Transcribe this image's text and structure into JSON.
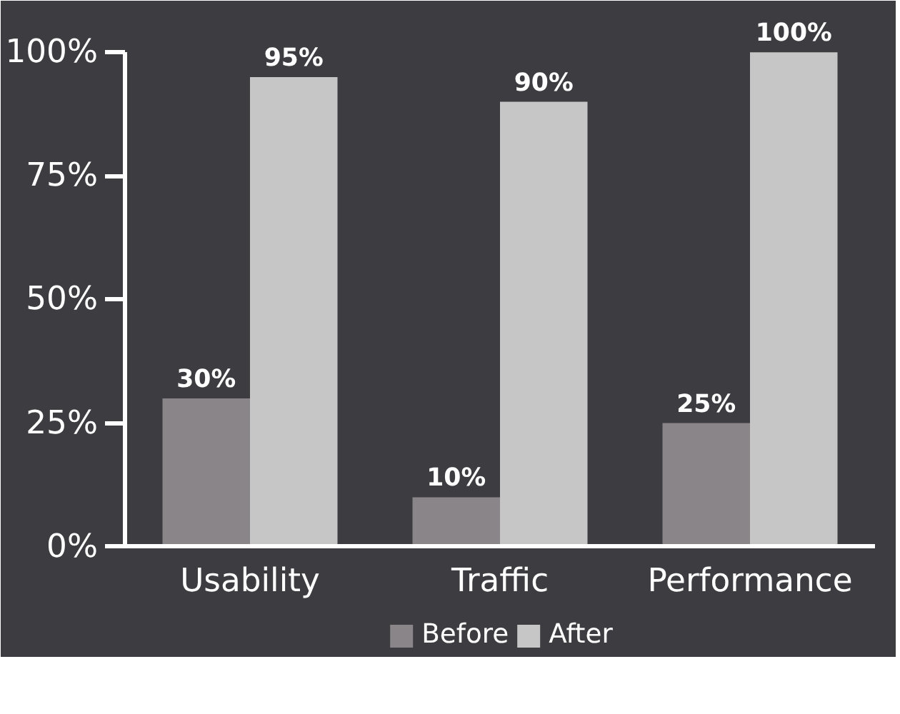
{
  "chart_data": {
    "type": "bar",
    "categories": [
      "Usability",
      "Traffic",
      "Performance"
    ],
    "series": [
      {
        "name": "Before",
        "color": "#8a8588",
        "values": [
          30,
          10,
          25
        ],
        "value_labels": [
          "30%",
          "10%",
          "25%"
        ]
      },
      {
        "name": "After",
        "color": "#c6c6c6",
        "values": [
          95,
          90,
          100
        ],
        "value_labels": [
          "95%",
          "90%",
          "100%"
        ]
      }
    ],
    "ylim": [
      0,
      100
    ],
    "yticks": [
      {
        "value": 0,
        "label": "0%"
      },
      {
        "value": 25,
        "label": "25%"
      },
      {
        "value": 50,
        "label": "50%"
      },
      {
        "value": 75,
        "label": "75%"
      },
      {
        "value": 100,
        "label": "100%"
      }
    ],
    "grid": false,
    "legend": "bottom"
  }
}
